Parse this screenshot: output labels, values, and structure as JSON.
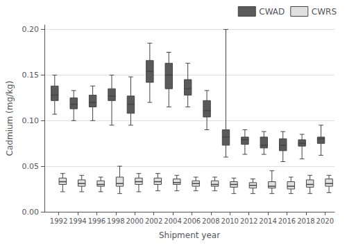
{
  "chart_data": {
    "type": "boxplot",
    "title": "",
    "xlabel": "Shipment year",
    "ylabel": "Cadmium (mg/kg)",
    "x": [
      1992,
      1994,
      1996,
      1998,
      2000,
      2002,
      2004,
      2006,
      2008,
      2010,
      2012,
      2014,
      2016,
      2018,
      2020
    ],
    "xlim": [
      1990.5,
      2021.0
    ],
    "xticks": [
      1992,
      1994,
      1996,
      1998,
      2000,
      2002,
      2004,
      2006,
      2008,
      2010,
      2012,
      2014,
      2016,
      2018,
      2020
    ],
    "ylim": [
      0.0,
      0.205
    ],
    "yticks": [
      {
        "value": 0.0,
        "label": "0.00"
      },
      0.05,
      {
        "value": 0.1,
        "label": "0.10"
      },
      0.15,
      {
        "value": 0.2,
        "label": "0.20"
      }
    ],
    "grid": true,
    "legend": "upper right",
    "series": [
      {
        "name": "CWAD",
        "color": "#5a5a5a",
        "p10": [
          0.107,
          0.1,
          0.1,
          0.095,
          0.095,
          0.12,
          0.115,
          0.115,
          0.09,
          0.06,
          0.063,
          0.063,
          0.055,
          0.058,
          0.062
        ],
        "p25": [
          0.122,
          0.113,
          0.115,
          0.122,
          0.108,
          0.142,
          0.135,
          0.128,
          0.104,
          0.073,
          0.074,
          0.07,
          0.067,
          0.072,
          0.075
        ],
        "median": [
          0.128,
          0.118,
          0.12,
          0.127,
          0.118,
          0.154,
          0.15,
          0.135,
          0.111,
          0.082,
          0.079,
          0.073,
          0.073,
          0.075,
          0.08
        ],
        "p75": [
          0.138,
          0.125,
          0.128,
          0.135,
          0.127,
          0.166,
          0.163,
          0.145,
          0.122,
          0.09,
          0.082,
          0.082,
          0.08,
          0.079,
          0.082
        ],
        "p90": [
          0.15,
          0.133,
          0.138,
          0.15,
          0.148,
          0.185,
          0.175,
          0.163,
          0.133,
          0.2,
          0.09,
          0.088,
          0.088,
          0.085,
          0.095
        ]
      },
      {
        "name": "CWRS",
        "color": "#e0e0e0",
        "p10": [
          0.022,
          0.022,
          0.022,
          0.02,
          0.022,
          0.023,
          0.023,
          0.023,
          0.023,
          0.02,
          0.02,
          0.02,
          0.02,
          0.02,
          0.021
        ],
        "p25": [
          0.03,
          0.028,
          0.028,
          0.028,
          0.03,
          0.03,
          0.03,
          0.028,
          0.028,
          0.027,
          0.026,
          0.026,
          0.025,
          0.027,
          0.028
        ],
        "median": [
          0.033,
          0.031,
          0.03,
          0.031,
          0.033,
          0.033,
          0.032,
          0.031,
          0.03,
          0.03,
          0.029,
          0.028,
          0.028,
          0.03,
          0.031
        ],
        "p75": [
          0.037,
          0.035,
          0.034,
          0.038,
          0.037,
          0.037,
          0.036,
          0.034,
          0.034,
          0.033,
          0.032,
          0.033,
          0.033,
          0.035,
          0.036
        ],
        "p90": [
          0.042,
          0.04,
          0.038,
          0.05,
          0.042,
          0.042,
          0.04,
          0.038,
          0.038,
          0.037,
          0.036,
          0.045,
          0.038,
          0.04,
          0.04
        ]
      }
    ]
  }
}
